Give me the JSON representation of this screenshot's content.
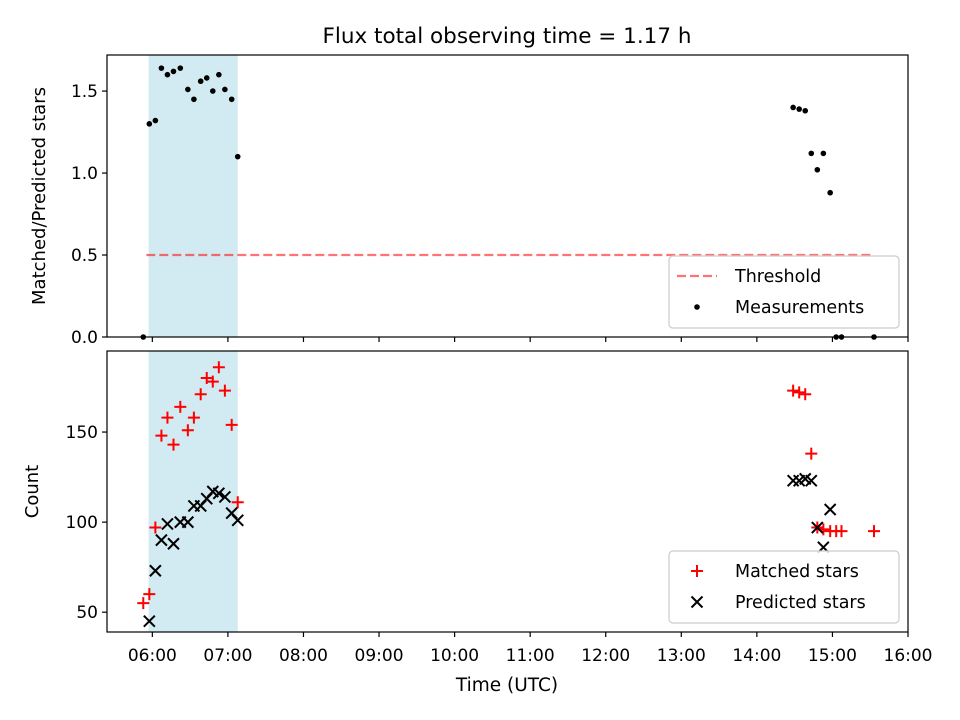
{
  "chart_data": {
    "title": "Flux total observing time = 1.17 h",
    "xlabel": "Time (UTC)",
    "xlim_hours": [
      5.4,
      16.0
    ],
    "x_ticks": [
      {
        "value": 6,
        "label": "06:00"
      },
      {
        "value": 7,
        "label": "07:00"
      },
      {
        "value": 8,
        "label": "08:00"
      },
      {
        "value": 9,
        "label": "09:00"
      },
      {
        "value": 10,
        "label": "10:00"
      },
      {
        "value": 11,
        "label": "11:00"
      },
      {
        "value": 12,
        "label": "12:00"
      },
      {
        "value": 13,
        "label": "13:00"
      },
      {
        "value": 14,
        "label": "14:00"
      },
      {
        "value": 15,
        "label": "15:00"
      },
      {
        "value": 16,
        "label": "16:00"
      }
    ],
    "shaded_interval_hours": [
      5.95,
      7.13
    ],
    "shade_color": "#add8e6",
    "panels": [
      {
        "id": "ratio",
        "type": "scatter",
        "ylabel": "Matched/Predicted stars",
        "ylim": [
          0.0,
          1.72
        ],
        "y_ticks": [
          {
            "value": 0.0,
            "label": "0.0"
          },
          {
            "value": 0.5,
            "label": "0.5"
          },
          {
            "value": 1.0,
            "label": "1.0"
          },
          {
            "value": 1.5,
            "label": "1.5"
          }
        ],
        "threshold": {
          "y": 0.5,
          "x_range": [
            5.92,
            15.55
          ],
          "color": "#ff0000",
          "label": "Threshold"
        },
        "series": [
          {
            "name": "Measurements",
            "marker": "dot",
            "color": "#000000",
            "x": [
              5.88,
              5.96,
              6.04,
              6.12,
              6.2,
              6.28,
              6.37,
              6.47,
              6.55,
              6.64,
              6.72,
              6.8,
              6.88,
              6.96,
              7.05,
              7.13,
              14.48,
              14.56,
              14.64,
              14.72,
              14.8,
              14.88,
              14.97,
              15.05,
              15.12,
              15.55
            ],
            "y": [
              0.0,
              1.3,
              1.32,
              1.64,
              1.6,
              1.62,
              1.64,
              1.51,
              1.45,
              1.56,
              1.58,
              1.5,
              1.6,
              1.51,
              1.45,
              1.1,
              1.4,
              1.39,
              1.38,
              1.12,
              1.02,
              1.12,
              0.88,
              0.0,
              0.0,
              0.0
            ]
          }
        ],
        "legend": {
          "location": "lower-right",
          "entries": [
            "Threshold",
            "Measurements"
          ]
        }
      },
      {
        "id": "count",
        "type": "scatter",
        "ylabel": "Count",
        "ylim": [
          39,
          195
        ],
        "y_ticks": [
          {
            "value": 50,
            "label": "50"
          },
          {
            "value": 100,
            "label": "100"
          },
          {
            "value": 150,
            "label": "150"
          }
        ],
        "series": [
          {
            "name": "Matched stars",
            "marker": "plus",
            "color": "#ff0000",
            "x": [
              5.88,
              5.96,
              6.04,
              6.12,
              6.2,
              6.28,
              6.37,
              6.47,
              6.55,
              6.64,
              6.72,
              6.8,
              6.88,
              6.96,
              7.05,
              7.13,
              14.48,
              14.56,
              14.64,
              14.72,
              14.8,
              14.88,
              14.97,
              15.05,
              15.12,
              15.55
            ],
            "y": [
              55,
              60,
              97,
              148,
              158,
              143,
              164,
              151,
              158,
              171,
              180,
              178,
              186,
              173,
              154,
              111,
              173,
              172,
              171,
              138,
              97,
              96,
              95,
              95,
              95,
              95
            ]
          },
          {
            "name": "Predicted stars",
            "marker": "x",
            "color": "#000000",
            "x": [
              5.96,
              6.04,
              6.12,
              6.2,
              6.28,
              6.37,
              6.47,
              6.55,
              6.64,
              6.72,
              6.8,
              6.88,
              6.96,
              7.05,
              7.13,
              14.48,
              14.56,
              14.64,
              14.72,
              14.8,
              14.88,
              14.97
            ],
            "y": [
              45,
              73,
              90,
              99,
              88,
              100,
              100,
              109,
              109,
              113,
              117,
              116,
              114,
              105,
              101,
              123,
              123,
              124,
              123,
              97,
              86,
              107
            ]
          }
        ],
        "legend": {
          "location": "lower-right",
          "entries": [
            "Matched stars",
            "Predicted stars"
          ]
        }
      }
    ]
  }
}
